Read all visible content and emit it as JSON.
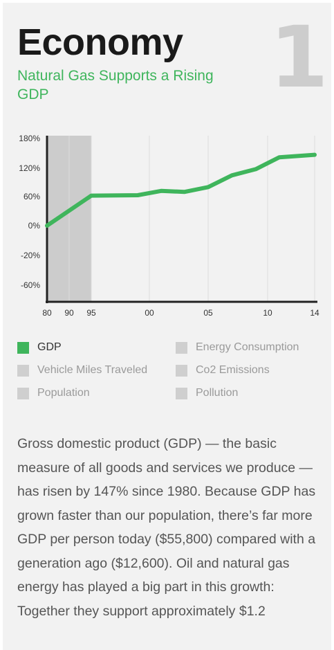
{
  "header": {
    "number": "1",
    "title": "Economy",
    "subtitle": "Natural Gas Supports a Rising GDP"
  },
  "colors": {
    "accent": "#3fb55c",
    "inactive": "#cfcfcf",
    "shade": "#cccccc"
  },
  "chart_data": {
    "type": "line",
    "title": "",
    "xlabel": "",
    "ylabel": "",
    "x_tick_labels": [
      "80",
      "90",
      "95",
      "00",
      "05",
      "10",
      "14"
    ],
    "x_tick_years": [
      1980,
      1990,
      1995,
      2000,
      2005,
      2010,
      2014
    ],
    "y_tick_labels": [
      "180%",
      "120%",
      "60%",
      "0%",
      "-20%",
      "-60%"
    ],
    "y_tick_values": [
      180,
      120,
      60,
      0,
      -20,
      -60
    ],
    "ylim": [
      -80,
      180
    ],
    "xlim": [
      1980,
      2014
    ],
    "shaded_range": [
      1980,
      1995
    ],
    "grid": "vertical",
    "series": [
      {
        "name": "GDP",
        "x": [
          1980,
          1995,
          1999,
          2001,
          2003,
          2005,
          2007,
          2009,
          2011,
          2014
        ],
        "y": [
          0,
          62,
          63,
          72,
          70,
          80,
          105,
          118,
          142,
          147
        ]
      }
    ]
  },
  "legend": {
    "items": [
      {
        "label": "GDP",
        "active": true
      },
      {
        "label": "Energy Consumption",
        "active": false
      },
      {
        "label": "Vehicle Miles Traveled",
        "active": false
      },
      {
        "label": "Co2 Emissions",
        "active": false
      },
      {
        "label": "Population",
        "active": false
      },
      {
        "label": "Pollution",
        "active": false
      }
    ]
  },
  "body": {
    "text": "Gross domestic product (GDP) — the basic measure of all goods and services we produce — has risen by 147% since 1980. Because GDP has grown faster than our population, there’s far more GDP per person today ($55,800) compared with a generation ago ($12,600). Oil and natural gas energy has played a big part in this growth: Together they support approximately $1.2"
  }
}
